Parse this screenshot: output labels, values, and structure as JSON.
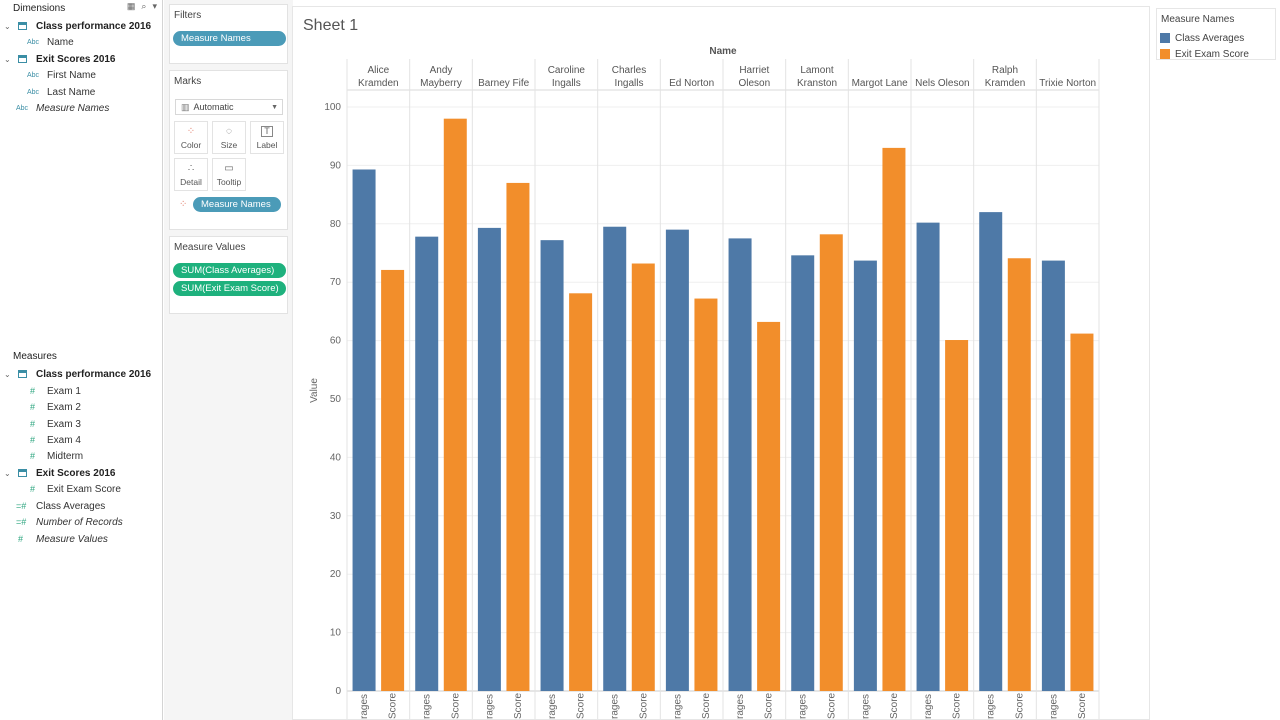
{
  "dimensions": {
    "header": "Dimensions",
    "groups": [
      {
        "label": "Class performance 2016",
        "fields": [
          {
            "label": "Name",
            "type": "Abc"
          }
        ]
      },
      {
        "label": "Exit Scores 2016",
        "fields": [
          {
            "label": "First Name",
            "type": "Abc"
          },
          {
            "label": "Last Name",
            "type": "Abc"
          }
        ]
      }
    ],
    "extra": [
      {
        "label": "Measure Names",
        "type": "Abc"
      }
    ]
  },
  "measures": {
    "header": "Measures",
    "groups": [
      {
        "label": "Class performance 2016",
        "fields": [
          "Exam 1",
          "Exam 2",
          "Exam 3",
          "Exam 4",
          "Midterm"
        ]
      },
      {
        "label": "Exit Scores 2016",
        "fields": [
          "Exit Exam Score"
        ]
      }
    ],
    "extra": [
      "Class Averages",
      "Number of Records",
      "Measure Values"
    ]
  },
  "filters": {
    "title": "Filters",
    "pill": "Measure Names"
  },
  "marks": {
    "title": "Marks",
    "mark_type": "Automatic",
    "buttons": [
      {
        "label": "Color",
        "icon": "color-dots-icon"
      },
      {
        "label": "Size",
        "icon": "size-icon"
      },
      {
        "label": "Label",
        "icon": "label-icon"
      },
      {
        "label": "Detail",
        "icon": "detail-icon"
      },
      {
        "label": "Tooltip",
        "icon": "tooltip-icon"
      }
    ],
    "color_pill": "Measure Names"
  },
  "measure_values": {
    "title": "Measure Values",
    "pills": [
      "SUM(Class Averages)",
      "SUM(Exit Exam Score)"
    ]
  },
  "sheet": {
    "title": "Sheet 1"
  },
  "legend": {
    "title": "Measure Names",
    "items": [
      {
        "label": "Class Averages",
        "color": "#4e79a7"
      },
      {
        "label": "Exit Exam Score",
        "color": "#f28e2b"
      }
    ]
  },
  "chart_data": {
    "type": "bar",
    "column_header": "Name",
    "ylabel": "Value",
    "ylim": [
      0,
      100
    ],
    "yticks": [
      0,
      10,
      20,
      30,
      40,
      50,
      60,
      70,
      80,
      90,
      100
    ],
    "grid": true,
    "categories": [
      [
        "Alice",
        "Kramden"
      ],
      [
        "Andy",
        "Mayberry"
      ],
      [
        "Barney Fife"
      ],
      [
        "Caroline",
        "Ingalls"
      ],
      [
        "Charles",
        "Ingalls"
      ],
      [
        "Ed Norton"
      ],
      [
        "Harriet",
        "Oleson"
      ],
      [
        "Lamont",
        "Kranston"
      ],
      [
        "Margot Lane"
      ],
      [
        "Nels Oleson"
      ],
      [
        "Ralph",
        "Kramden"
      ],
      [
        "Trixie Norton"
      ]
    ],
    "bar_labels": [
      "rages",
      "Score"
    ],
    "series": [
      {
        "name": "Class Averages",
        "color": "#4e79a7",
        "values": [
          89.3,
          77.8,
          79.3,
          77.2,
          79.5,
          79.0,
          77.5,
          74.6,
          73.7,
          80.2,
          82.0,
          73.7
        ]
      },
      {
        "name": "Exit Exam Score",
        "color": "#f28e2b",
        "values": [
          72.1,
          98.0,
          87.0,
          68.1,
          73.2,
          67.2,
          63.2,
          78.2,
          93.0,
          60.1,
          74.1,
          61.2
        ]
      }
    ]
  }
}
